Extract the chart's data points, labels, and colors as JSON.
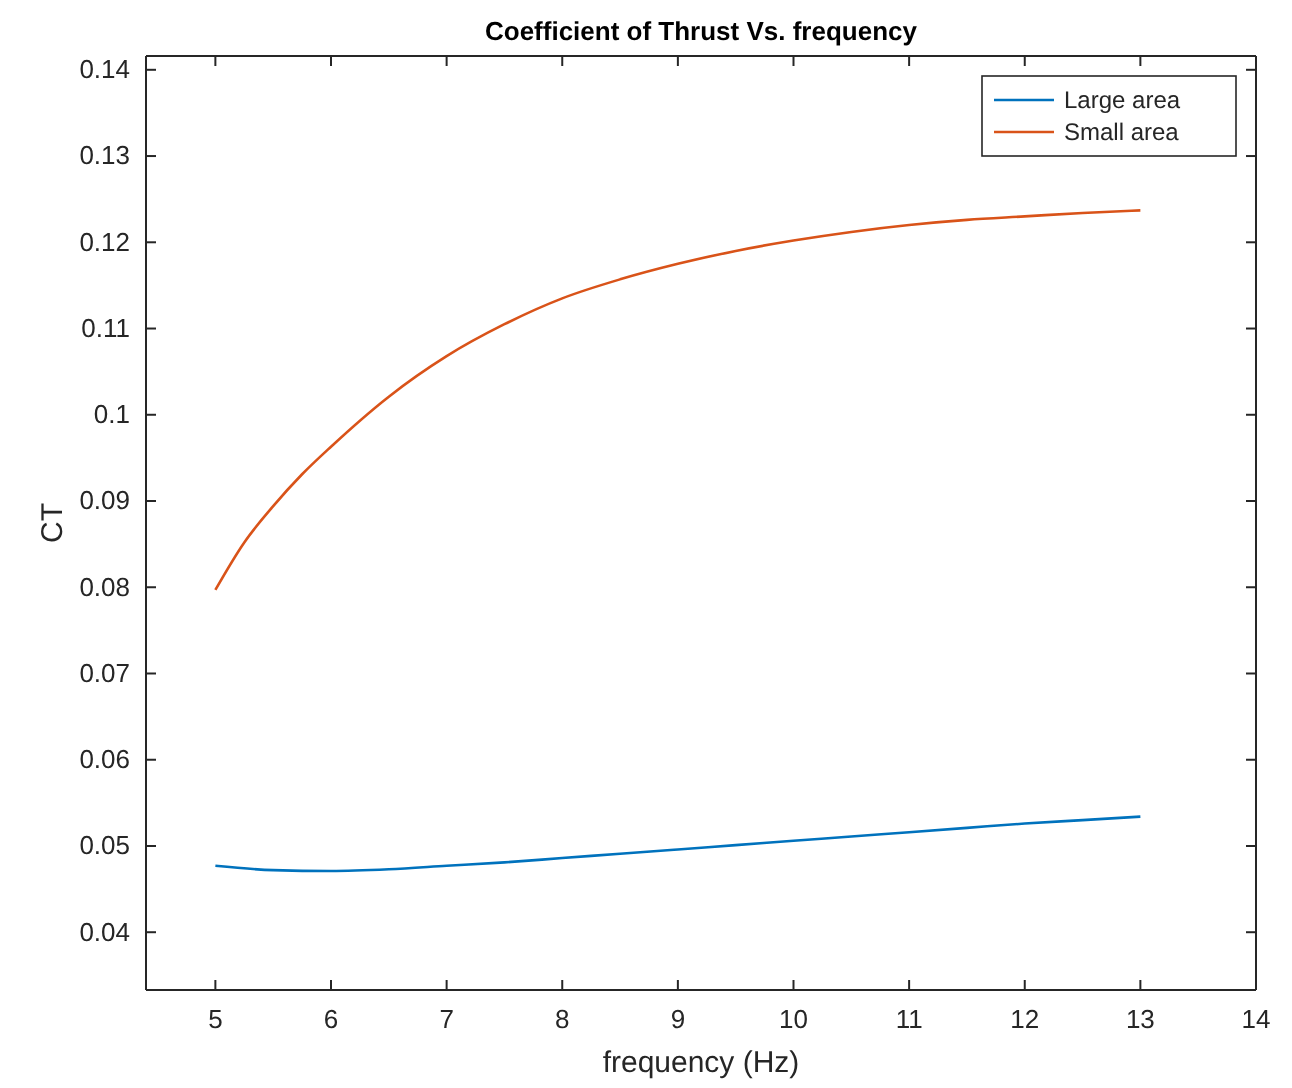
{
  "chart_data": {
    "type": "line",
    "title": "Coefficient of Thrust Vs. frequency",
    "xlabel": "frequency (Hz)",
    "ylabel": "CT",
    "xlim": [
      4.4,
      14
    ],
    "xticks": [
      5,
      6,
      7,
      8,
      9,
      10,
      11,
      12,
      13,
      14
    ],
    "ylim": [
      0.0333,
      0.1416
    ],
    "yticks": [
      0.04,
      0.05,
      0.06,
      0.07,
      0.08,
      0.09,
      0.1,
      0.11,
      0.12,
      0.13,
      0.14
    ],
    "legend": "top right",
    "grid": false,
    "series": [
      {
        "name": "Large area",
        "color": "#0072bd",
        "x": [
          5,
          5.5,
          6,
          6.5,
          7,
          7.5,
          8,
          8.5,
          9,
          9.5,
          10,
          10.5,
          11,
          11.5,
          12,
          12.5,
          13
        ],
        "values": [
          0.0477,
          0.0472,
          0.0471,
          0.0473,
          0.0477,
          0.0481,
          0.0486,
          0.0491,
          0.0496,
          0.0501,
          0.0506,
          0.0511,
          0.0516,
          0.0521,
          0.0526,
          0.053,
          0.0534
        ]
      },
      {
        "name": "Small area",
        "color": "#d95319",
        "x": [
          5,
          5.25,
          5.5,
          5.75,
          6,
          6.5,
          7,
          7.5,
          8,
          8.5,
          9,
          9.5,
          10,
          10.5,
          11,
          11.5,
          12,
          12.5,
          13
        ],
        "values": [
          0.0797,
          0.0852,
          0.0894,
          0.0931,
          0.0963,
          0.1021,
          0.1068,
          0.1105,
          0.1135,
          0.1157,
          0.1175,
          0.119,
          0.1202,
          0.1212,
          0.122,
          0.1226,
          0.123,
          0.1234,
          0.1237
        ]
      }
    ]
  }
}
